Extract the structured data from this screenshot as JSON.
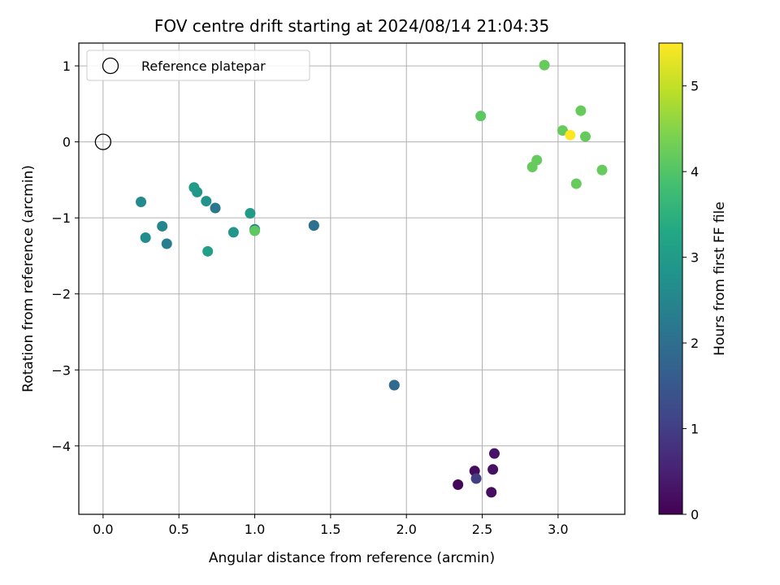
{
  "chart_data": {
    "type": "scatter",
    "title": "FOV centre drift starting at 2024/08/14 21:04:35",
    "xlabel": "Angular distance from reference (arcmin)",
    "ylabel": "Rotation from reference (arcmin)",
    "xlim": [
      -0.16,
      3.44
    ],
    "ylim": [
      -4.9,
      1.3
    ],
    "xticks": [
      0.0,
      0.5,
      1.0,
      1.5,
      2.0,
      2.5,
      3.0
    ],
    "xtick_labels": [
      "0.0",
      "0.5",
      "1.0",
      "1.5",
      "2.0",
      "2.5",
      "3.0"
    ],
    "yticks": [
      1,
      0,
      -1,
      -2,
      -3,
      -4
    ],
    "ytick_labels": [
      "1",
      "0",
      "−1",
      "−2",
      "−3",
      "−4"
    ],
    "grid": true,
    "legend": {
      "placement": "top-left",
      "entries": [
        "Reference platepar"
      ]
    },
    "reference_point": {
      "x": 0.0,
      "y": 0.0
    },
    "colorbar": {
      "label": "Hours from first FF file",
      "colormap": "viridis",
      "range": [
        0,
        5.5
      ],
      "ticks": [
        0,
        1,
        2,
        3,
        4,
        5
      ],
      "tick_labels": [
        "0",
        "1",
        "2",
        "3",
        "4",
        "5"
      ]
    },
    "points": [
      {
        "x": 2.34,
        "y": -4.51,
        "c": 0.1
      },
      {
        "x": 2.45,
        "y": -4.33,
        "c": 0.15
      },
      {
        "x": 2.56,
        "y": -4.61,
        "c": 0.2
      },
      {
        "x": 2.57,
        "y": -4.31,
        "c": 0.25
      },
      {
        "x": 2.58,
        "y": -4.1,
        "c": 0.3
      },
      {
        "x": 2.46,
        "y": -4.43,
        "c": 1.0
      },
      {
        "x": 1.92,
        "y": -3.2,
        "c": 1.8
      },
      {
        "x": 1.92,
        "y": -3.2,
        "c": 1.9
      },
      {
        "x": 1.39,
        "y": -1.1,
        "c": 2.0
      },
      {
        "x": 1.39,
        "y": -1.1,
        "c": 2.05
      },
      {
        "x": 0.74,
        "y": -0.87,
        "c": 2.2
      },
      {
        "x": 0.42,
        "y": -1.34,
        "c": 2.3
      },
      {
        "x": 1.0,
        "y": -1.15,
        "c": 2.4
      },
      {
        "x": 0.39,
        "y": -1.11,
        "c": 2.5
      },
      {
        "x": 0.25,
        "y": -0.79,
        "c": 2.6
      },
      {
        "x": 0.28,
        "y": -1.26,
        "c": 2.65
      },
      {
        "x": 0.68,
        "y": -0.78,
        "c": 2.8
      },
      {
        "x": 0.86,
        "y": -1.19,
        "c": 2.85
      },
      {
        "x": 0.62,
        "y": -0.66,
        "c": 2.9
      },
      {
        "x": 0.6,
        "y": -0.6,
        "c": 3.0
      },
      {
        "x": 0.97,
        "y": -0.94,
        "c": 3.0
      },
      {
        "x": 0.69,
        "y": -1.44,
        "c": 3.1
      },
      {
        "x": 1.0,
        "y": -1.17,
        "c": 4.1
      },
      {
        "x": 2.49,
        "y": 0.34,
        "c": 4.1
      },
      {
        "x": 2.91,
        "y": 1.01,
        "c": 4.2
      },
      {
        "x": 3.03,
        "y": 0.15,
        "c": 4.2
      },
      {
        "x": 3.15,
        "y": 0.41,
        "c": 4.2
      },
      {
        "x": 3.18,
        "y": 0.07,
        "c": 4.2
      },
      {
        "x": 2.86,
        "y": -0.24,
        "c": 4.2
      },
      {
        "x": 2.83,
        "y": -0.33,
        "c": 4.2
      },
      {
        "x": 3.12,
        "y": -0.55,
        "c": 4.2
      },
      {
        "x": 3.29,
        "y": -0.37,
        "c": 4.2
      },
      {
        "x": 3.08,
        "y": 0.09,
        "c": 5.5
      }
    ]
  }
}
